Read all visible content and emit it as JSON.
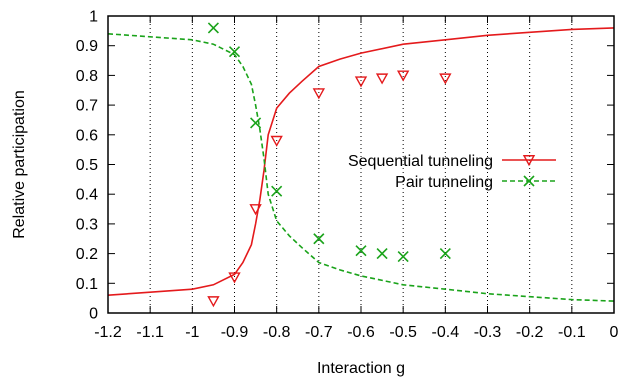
{
  "chart_data": {
    "type": "line",
    "title": "",
    "xlabel": "Interaction g",
    "ylabel": "Relative participation",
    "xlim": [
      -1.2,
      0
    ],
    "ylim": [
      0,
      1
    ],
    "x_ticks": [
      -1.2,
      -1.1,
      -1,
      -0.9,
      -0.8,
      -0.7,
      -0.6,
      -0.5,
      -0.4,
      -0.3,
      -0.2,
      -0.1,
      0
    ],
    "x_tick_labels": [
      "-1.2",
      "-1.1",
      "-1",
      "-0.9",
      "-0.8",
      "-0.7",
      "-0.6",
      "-0.5",
      "-0.4",
      "-0.3",
      "-0.2",
      "-0.1",
      "0"
    ],
    "y_ticks": [
      0,
      0.1,
      0.2,
      0.3,
      0.4,
      0.5,
      0.6,
      0.7,
      0.8,
      0.9,
      1
    ],
    "y_tick_labels": [
      "0",
      "0.1",
      "0.2",
      "0.3",
      "0.4",
      "0.5",
      "0.6",
      "0.7",
      "0.8",
      "0.9",
      "1"
    ],
    "vertical_grid": true,
    "legend_position": "right-middle",
    "series": [
      {
        "name": "Sequential tunneling",
        "color": "#e41a1c",
        "line_style": "solid",
        "marker": "triangle-down-open",
        "curve_x": [
          -1.2,
          -1.1,
          -1.0,
          -0.95,
          -0.9,
          -0.88,
          -0.86,
          -0.85,
          -0.84,
          -0.83,
          -0.82,
          -0.8,
          -0.77,
          -0.74,
          -0.7,
          -0.65,
          -0.6,
          -0.5,
          -0.4,
          -0.3,
          -0.2,
          -0.1,
          0
        ],
        "curve_y": [
          0.06,
          0.07,
          0.08,
          0.095,
          0.13,
          0.17,
          0.23,
          0.3,
          0.38,
          0.48,
          0.6,
          0.69,
          0.74,
          0.78,
          0.83,
          0.855,
          0.875,
          0.905,
          0.92,
          0.935,
          0.945,
          0.955,
          0.96
        ],
        "points_x": [
          -0.95,
          -0.9,
          -0.85,
          -0.8,
          -0.7,
          -0.6,
          -0.55,
          -0.5,
          -0.4
        ],
        "points_y": [
          0.04,
          0.12,
          0.35,
          0.58,
          0.74,
          0.78,
          0.79,
          0.8,
          0.79
        ]
      },
      {
        "name": "Pair tunneling",
        "color": "#1aa31a",
        "line_style": "dashed",
        "marker": "x",
        "curve_x": [
          -1.2,
          -1.1,
          -1.0,
          -0.95,
          -0.9,
          -0.88,
          -0.86,
          -0.85,
          -0.84,
          -0.83,
          -0.82,
          -0.8,
          -0.77,
          -0.74,
          -0.7,
          -0.65,
          -0.6,
          -0.5,
          -0.4,
          -0.3,
          -0.2,
          -0.1,
          0
        ],
        "curve_y": [
          0.94,
          0.93,
          0.92,
          0.905,
          0.87,
          0.83,
          0.77,
          0.7,
          0.62,
          0.52,
          0.4,
          0.31,
          0.26,
          0.22,
          0.17,
          0.145,
          0.125,
          0.095,
          0.08,
          0.065,
          0.055,
          0.045,
          0.04
        ],
        "points_x": [
          -0.95,
          -0.9,
          -0.85,
          -0.8,
          -0.7,
          -0.6,
          -0.55,
          -0.5,
          -0.4
        ],
        "points_y": [
          0.96,
          0.88,
          0.64,
          0.41,
          0.25,
          0.21,
          0.2,
          0.19,
          0.2
        ]
      }
    ]
  }
}
